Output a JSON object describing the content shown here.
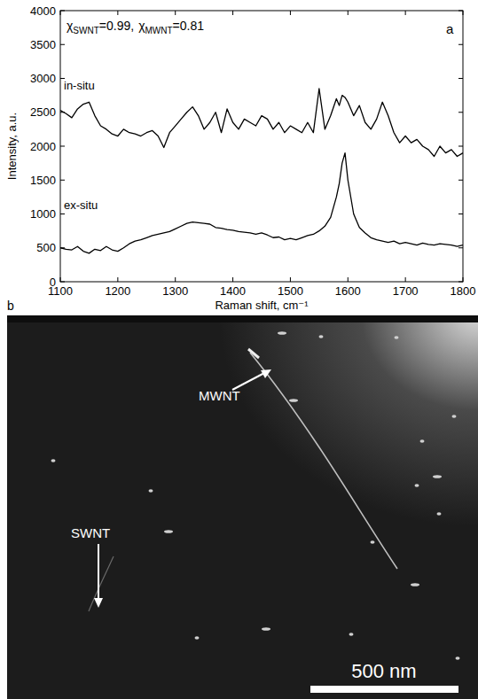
{
  "chart_data": {
    "type": "line",
    "xlabel": "Raman shift, cm⁻¹",
    "ylabel": "Intensity, a.u.",
    "annotations": [
      {
        "text": "a"
      },
      {
        "symbol": "χ",
        "subscript": "SWNT",
        "text": "=0.99,"
      },
      {
        "symbol": "χ",
        "subscript": "MWNT",
        "text": "=0.81"
      }
    ],
    "xlim": [
      1100,
      1800
    ],
    "ylim": [
      0,
      4000
    ],
    "xticks": [
      1100,
      1200,
      1300,
      1400,
      1500,
      1600,
      1700,
      1800
    ],
    "yticks": [
      0,
      500,
      1000,
      1500,
      2000,
      2500,
      3000,
      3500,
      4000
    ],
    "x": [
      1100,
      1110,
      1120,
      1130,
      1140,
      1150,
      1160,
      1170,
      1180,
      1190,
      1200,
      1210,
      1220,
      1230,
      1240,
      1250,
      1260,
      1270,
      1280,
      1290,
      1300,
      1310,
      1320,
      1330,
      1340,
      1350,
      1360,
      1370,
      1380,
      1390,
      1400,
      1410,
      1420,
      1430,
      1440,
      1450,
      1460,
      1470,
      1480,
      1490,
      1500,
      1510,
      1520,
      1530,
      1540,
      1550,
      1560,
      1570,
      1580,
      1585,
      1590,
      1595,
      1600,
      1610,
      1620,
      1630,
      1640,
      1650,
      1660,
      1670,
      1680,
      1690,
      1700,
      1710,
      1720,
      1730,
      1740,
      1750,
      1760,
      1770,
      1780,
      1790,
      1800
    ],
    "series": [
      {
        "name": "in-situ",
        "color": "#000000",
        "values": [
          2530,
          2480,
          2420,
          2550,
          2620,
          2650,
          2450,
          2300,
          2250,
          2180,
          2150,
          2250,
          2200,
          2180,
          2150,
          2200,
          2230,
          2150,
          1980,
          2200,
          2300,
          2400,
          2500,
          2580,
          2450,
          2250,
          2350,
          2500,
          2200,
          2550,
          2350,
          2250,
          2400,
          2350,
          2300,
          2450,
          2400,
          2250,
          2350,
          2200,
          2300,
          2250,
          2200,
          2350,
          2200,
          2850,
          2250,
          2450,
          2700,
          2600,
          2750,
          2720,
          2650,
          2450,
          2600,
          2350,
          2250,
          2400,
          2650,
          2450,
          2200,
          2050,
          2150,
          2050,
          2100,
          2000,
          1950,
          1850,
          2000,
          1900,
          1950,
          1850,
          1900
        ]
      },
      {
        "name": "ex-situ",
        "color": "#000000",
        "values": [
          500,
          480,
          470,
          520,
          450,
          420,
          480,
          460,
          520,
          470,
          450,
          500,
          560,
          600,
          620,
          650,
          680,
          700,
          720,
          740,
          780,
          820,
          860,
          880,
          870,
          860,
          850,
          800,
          790,
          770,
          760,
          740,
          730,
          720,
          700,
          720,
          690,
          650,
          660,
          620,
          640,
          620,
          650,
          680,
          700,
          750,
          820,
          950,
          1250,
          1450,
          1750,
          1900,
          1500,
          1000,
          800,
          720,
          650,
          620,
          600,
          580,
          600,
          560,
          580,
          560,
          540,
          570,
          550,
          540,
          560,
          550,
          540,
          520,
          540
        ]
      }
    ]
  },
  "image_panel": {
    "letter": "b",
    "labels": [
      "MWNT",
      "SWNT"
    ],
    "scale_bar": "500 nm"
  }
}
